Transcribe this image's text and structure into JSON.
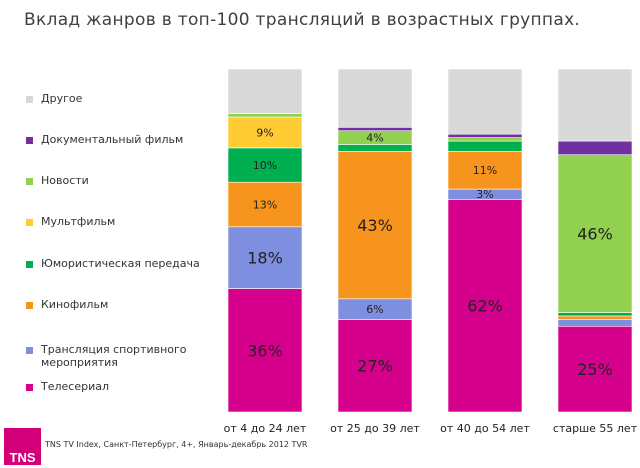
{
  "chart_data": {
    "type": "bar",
    "stacked": true,
    "title": "Вклад жанров в топ-100 трансляций в возрастных группах.",
    "categories": [
      "от 4 до 24 лет",
      "от 25 до 39 лет",
      "от 40 до 54 лет",
      "старше 55 лет"
    ],
    "ylim": [
      0,
      100
    ],
    "series": [
      {
        "name": "Телесериал",
        "color": "#d5008b",
        "values": [
          36,
          27,
          62,
          25
        ],
        "labels": [
          "36%",
          "27%",
          "62%",
          "25%"
        ]
      },
      {
        "name": "Трансляция спортивного мероприятия",
        "color": "#7f8fdf",
        "values": [
          18,
          6,
          3,
          2
        ],
        "labels": [
          "18%",
          "6%",
          "3%",
          ""
        ]
      },
      {
        "name": "Кинофильм",
        "color": "#f7941d",
        "values": [
          13,
          43,
          11,
          1
        ],
        "labels": [
          "13%",
          "43%",
          "11%",
          ""
        ]
      },
      {
        "name": "Юмористическая передача",
        "color": "#00b050",
        "values": [
          10,
          2,
          3,
          1
        ],
        "labels": [
          "10%",
          "",
          "",
          ""
        ]
      },
      {
        "name": "Мультфильм",
        "color": "#ffcc33",
        "values": [
          9,
          0,
          0,
          0
        ],
        "labels": [
          "9%",
          "",
          "",
          ""
        ]
      },
      {
        "name": "Новости",
        "color": "#92d050",
        "values": [
          1,
          4,
          1,
          46
        ],
        "labels": [
          "",
          "4%",
          "",
          "46%"
        ]
      },
      {
        "name": "Документальный фильм",
        "color": "#7030a0",
        "values": [
          0,
          1,
          1,
          4
        ],
        "labels": [
          "",
          "",
          "",
          ""
        ]
      },
      {
        "name": "Другое",
        "color": "#d9d9d9",
        "values": [
          13,
          17,
          19,
          21
        ],
        "labels": [
          "",
          "",
          "",
          ""
        ]
      }
    ]
  },
  "footer": {
    "logo": "TNS",
    "source": "TNS TV Index, Санкт-Петербург, 4+, Январь-декабрь 2012 TVR"
  }
}
